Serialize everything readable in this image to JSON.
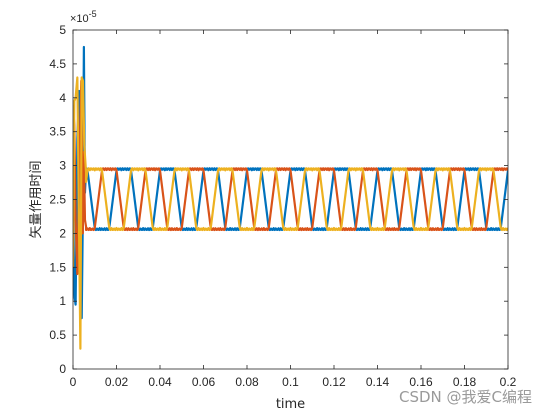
{
  "chart_data": {
    "type": "line",
    "title": "",
    "xlabel": "time",
    "ylabel": "矢量作用时间",
    "xlim": [
      0,
      0.2
    ],
    "ylim": [
      0,
      5
    ],
    "y_exponent_label": "× 10^-5",
    "y_exponent": "-5",
    "grid": false,
    "legend": "none",
    "x_ticks": [
      "0",
      "0.02",
      "0.04",
      "0.06",
      "0.08",
      "0.1",
      "0.12",
      "0.14",
      "0.16",
      "0.18",
      "0.2"
    ],
    "y_ticks": [
      "0",
      "0.5",
      "1",
      "1.5",
      "2",
      "2.5",
      "3",
      "3.5",
      "4",
      "4.5",
      "5"
    ],
    "steady_state": {
      "low": 2.08,
      "high": 2.93,
      "period": 0.02
    },
    "series": [
      {
        "color": "#0072BD",
        "phase": 0.0,
        "transient": [
          [
            0,
            3.6
          ],
          [
            0.0005,
            1.1
          ],
          [
            0.0012,
            0.95
          ],
          [
            0.002,
            3.4
          ],
          [
            0.0028,
            4.1
          ],
          [
            0.0034,
            1.5
          ],
          [
            0.004,
            0.75
          ],
          [
            0.0045,
            2.2
          ],
          [
            0.005,
            4.75
          ],
          [
            0.0055,
            2.6
          ],
          [
            0.006,
            2.95
          ]
        ]
      },
      {
        "color": "#D95319",
        "phase": 0.3333,
        "transient": [
          [
            0,
            3.9
          ],
          [
            0.0006,
            3.6
          ],
          [
            0.0012,
            2.2
          ],
          [
            0.002,
            1.4
          ],
          [
            0.003,
            3.1
          ],
          [
            0.0038,
            4.25
          ],
          [
            0.0045,
            2.0
          ],
          [
            0.005,
            3.2
          ],
          [
            0.0055,
            2.2
          ],
          [
            0.006,
            2.1
          ]
        ]
      },
      {
        "color": "#EDB120",
        "phase": 0.6667,
        "transient": [
          [
            0,
            1.5
          ],
          [
            0.0006,
            3.95
          ],
          [
            0.0012,
            4.0
          ],
          [
            0.002,
            4.3
          ],
          [
            0.0028,
            2.0
          ],
          [
            0.0034,
            0.3
          ],
          [
            0.004,
            4.3
          ],
          [
            0.0046,
            4.25
          ],
          [
            0.0052,
            3.3
          ],
          [
            0.006,
            2.9
          ]
        ]
      }
    ]
  },
  "watermark": "CSDN @我爱C编程"
}
